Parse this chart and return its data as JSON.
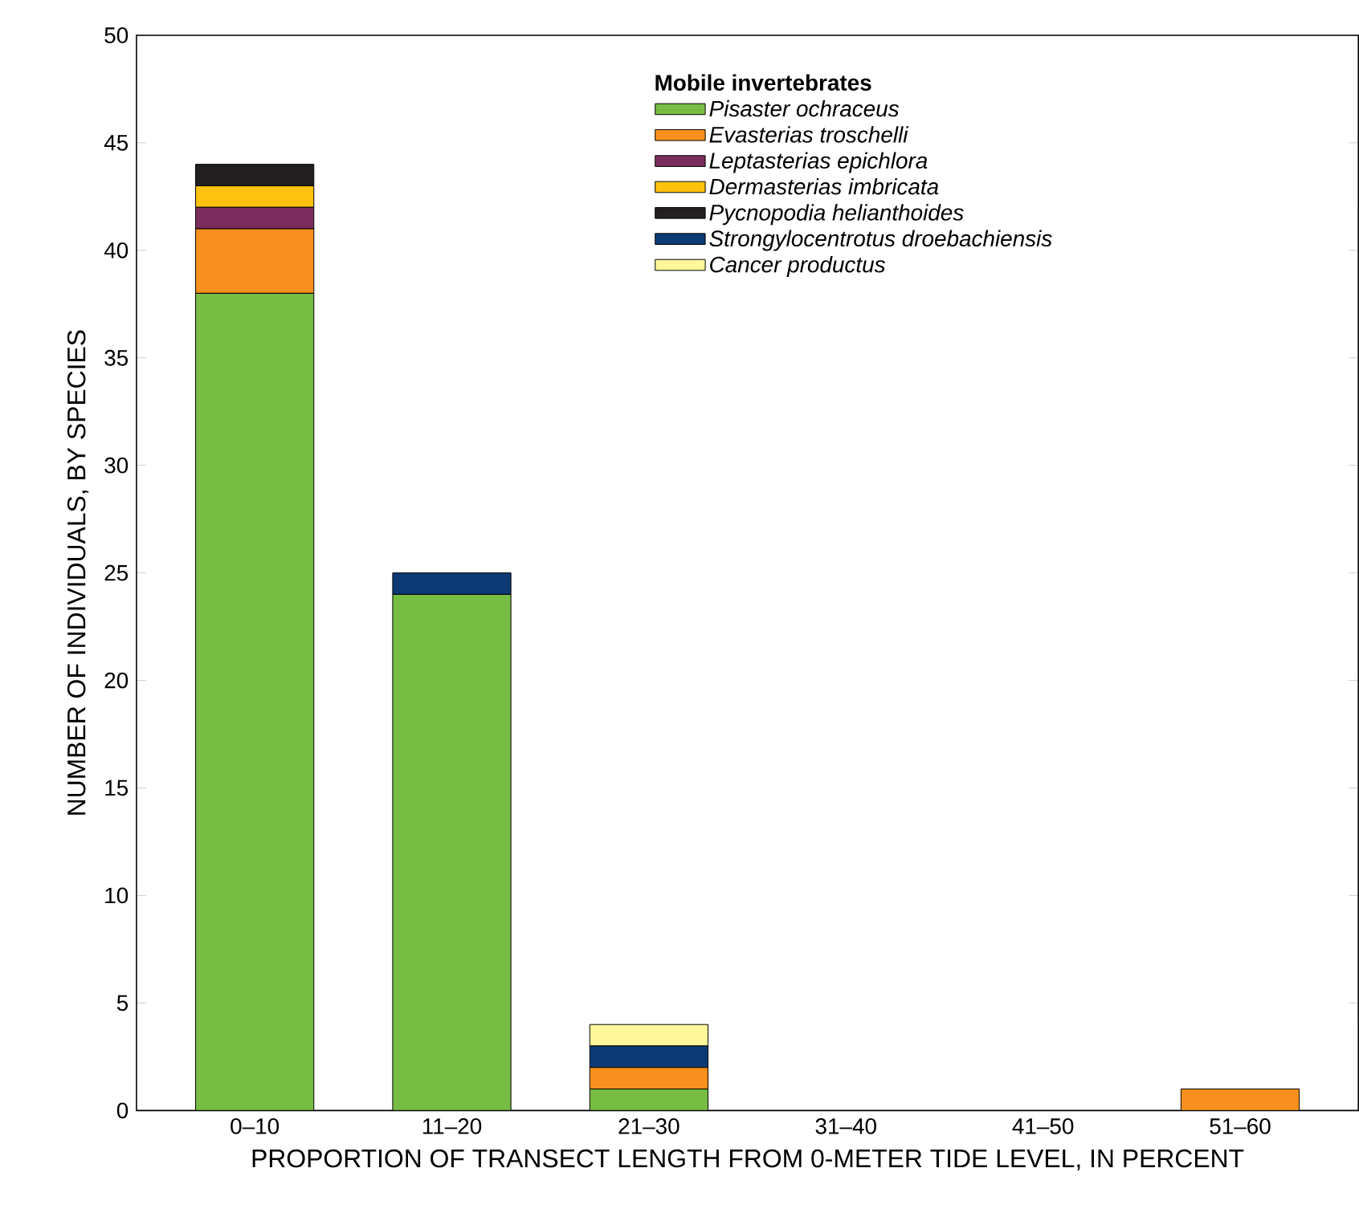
{
  "chart_data": {
    "type": "bar",
    "stacked": true,
    "xlabel": "PROPORTION OF TRANSECT LENGTH FROM 0-METER TIDE LEVEL, IN PERCENT",
    "ylabel": "NUMBER OF INDIVIDUALS, BY SPECIES",
    "legend_title": "Mobile invertebrates",
    "legend": "top right",
    "categories": [
      "0–10",
      "11–20",
      "21–30",
      "31–40",
      "41–50",
      "51–60"
    ],
    "ylim": [
      0,
      50
    ],
    "yticks": [
      0,
      5,
      10,
      15,
      20,
      25,
      30,
      35,
      40,
      45,
      50
    ],
    "series": [
      {
        "name": "Pisaster ochraceus",
        "color": "#77bc43",
        "values": [
          38,
          24,
          1,
          0,
          0,
          0
        ]
      },
      {
        "name": "Evasterias troschelli",
        "color": "#f7901e",
        "values": [
          3,
          0,
          1,
          0,
          0,
          1
        ]
      },
      {
        "name": "Leptasterias epichlora",
        "color": "#7b2d5e",
        "values": [
          1,
          0,
          0,
          0,
          0,
          0
        ]
      },
      {
        "name": "Dermasterias imbricata",
        "color": "#fdc20e",
        "values": [
          1,
          0,
          0,
          0,
          0,
          0
        ]
      },
      {
        "name": "Pycnopodia helianthoides",
        "color": "#231f20",
        "values": [
          1,
          0,
          0,
          0,
          0,
          0
        ]
      },
      {
        "name": "Strongylocentrotus droebachiensis",
        "color": "#0d3a74",
        "values": [
          0,
          1,
          1,
          0,
          0,
          0
        ]
      },
      {
        "name": "Cancer productus",
        "color": "#fff79a",
        "values": [
          0,
          0,
          1,
          0,
          0,
          0
        ]
      }
    ]
  }
}
